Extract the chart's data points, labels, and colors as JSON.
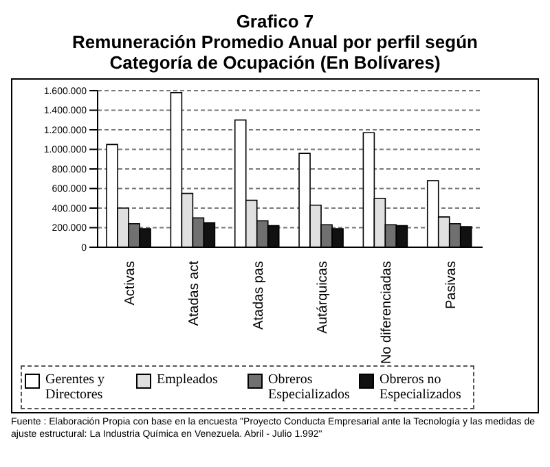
{
  "chart_data": {
    "type": "bar",
    "title": "Grafico 7",
    "subtitle": "Remuneración Promedio Anual por perfil según Categoría de Ocupación (En Bolívares)",
    "categories": [
      "Activas",
      "Atadas act",
      "Atadas pas",
      "Autárquicas",
      "No diferenciadas",
      "Pasivas"
    ],
    "series": [
      {
        "name": "Gerentes y Directores",
        "color": "#ffffff",
        "values": [
          1050000,
          1580000,
          1300000,
          960000,
          1170000,
          680000
        ]
      },
      {
        "name": "Empleados",
        "color": "#e0e0e0",
        "values": [
          400000,
          550000,
          480000,
          430000,
          500000,
          310000
        ]
      },
      {
        "name": "Obreros Especializados",
        "color": "#707070",
        "values": [
          240000,
          300000,
          270000,
          230000,
          230000,
          240000
        ]
      },
      {
        "name": "Obreros no Especializados",
        "color": "#111111",
        "values": [
          190000,
          250000,
          220000,
          190000,
          220000,
          210000
        ]
      }
    ],
    "ylim": [
      0,
      1600000
    ],
    "yticks": [
      0,
      {
        "value": 200000,
        "label": "200.000"
      },
      {
        "value": 400000,
        "label": "400.000"
      },
      {
        "value": 600000,
        "label": "600.000"
      },
      {
        "value": 800000,
        "label": "800.000"
      },
      {
        "value": 1000000,
        "label": "1.000.000"
      },
      {
        "value": 1200000,
        "label": "1.200.000"
      },
      {
        "value": 1400000,
        "label": "1.400.000"
      },
      {
        "value": 1600000,
        "label": "1.600.000"
      }
    ],
    "grid": "y",
    "legend": "bottom",
    "annotations": [
      "Fuente : Elaboración Propia con base en la encuesta \"Proyecto Conducta Empresarial ante la Tecnología y las medidas de ajuste estructural: La Industria Química en Venezuela. Abril - Julio 1.992\""
    ]
  }
}
